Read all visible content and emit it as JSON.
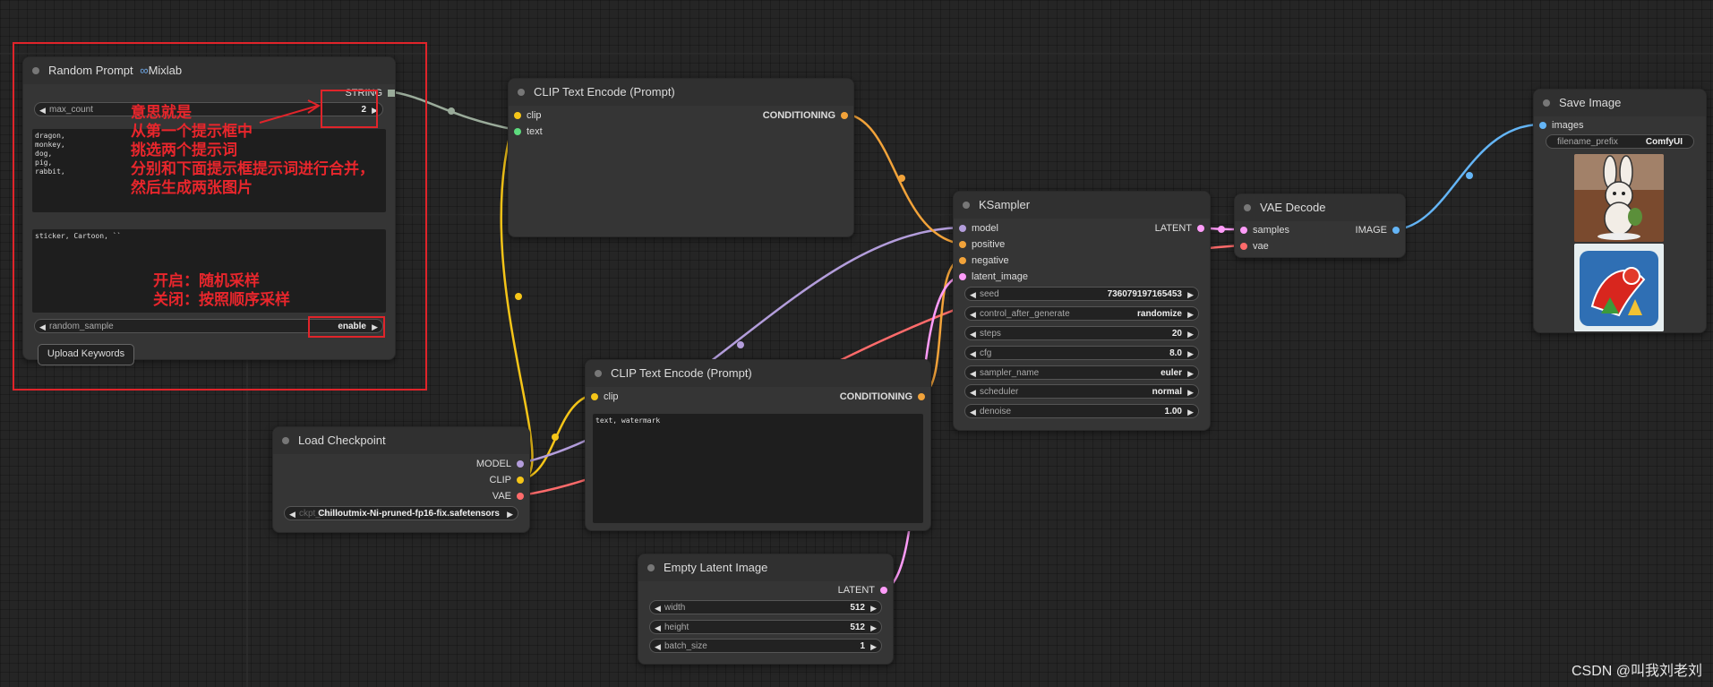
{
  "colors": {
    "annotation": "#e0242a",
    "clip_link": "#f5c518",
    "conditioning_link": "#f2a33a",
    "model_link": "#b39ddb",
    "vae_link": "#ff6b6b",
    "latent_link": "#ff9cf9",
    "image_link": "#64b5f6",
    "string_link": "#9aab9a"
  },
  "random_prompt": {
    "title": "Random Prompt",
    "title_suffix": "Mixlab",
    "title_icon": "infinity-icon",
    "output_string": "STRING",
    "max_count_label": "max_count",
    "max_count_value": "2",
    "keywords_text": "dragon,\nmonkey,\ndog,\npig,\nrabbit,",
    "prompt_text": "sticker, Cartoon, ``",
    "random_sample_label": "random_sample",
    "random_sample_value": "enable",
    "upload_button": "Upload Keywords"
  },
  "annotations": {
    "main": "意思就是\n从第一个提示框中\n挑选两个提示词\n分别和下面提示框提示词进行合并，\n然后生成两张图片",
    "toggle": "开启：随机采样\n关闭：按照顺序采样"
  },
  "clip_top": {
    "title": "CLIP Text Encode (Prompt)",
    "in_clip": "clip",
    "in_text": "text",
    "out": "CONDITIONING"
  },
  "clip_bottom": {
    "title": "CLIP Text Encode (Prompt)",
    "in_clip": "clip",
    "out": "CONDITIONING",
    "text": "text, watermark"
  },
  "load_checkpoint": {
    "title": "Load Checkpoint",
    "out_model": "MODEL",
    "out_clip": "CLIP",
    "out_vae": "VAE",
    "ckpt_label": "ckpt_name",
    "ckpt_value": "Chilloutmix-Ni-pruned-fp16-fix.safetensors"
  },
  "ksampler": {
    "title": "KSampler",
    "inputs": [
      "model",
      "positive",
      "negative",
      "latent_image"
    ],
    "output": "LATENT",
    "widgets": [
      {
        "label": "seed",
        "value": "736079197165453"
      },
      {
        "label": "control_after_generate",
        "value": "randomize"
      },
      {
        "label": "steps",
        "value": "20"
      },
      {
        "label": "cfg",
        "value": "8.0"
      },
      {
        "label": "sampler_name",
        "value": "euler"
      },
      {
        "label": "scheduler",
        "value": "normal"
      },
      {
        "label": "denoise",
        "value": "1.00"
      }
    ]
  },
  "vae_decode": {
    "title": "VAE Decode",
    "in_samples": "samples",
    "in_vae": "vae",
    "out": "IMAGE"
  },
  "save_image": {
    "title": "Save Image",
    "in_images": "images",
    "prefix_label": "filename_prefix",
    "prefix_value": "ComfyUI"
  },
  "empty_latent": {
    "title": "Empty Latent Image",
    "out": "LATENT",
    "widgets": [
      {
        "label": "width",
        "value": "512"
      },
      {
        "label": "height",
        "value": "512"
      },
      {
        "label": "batch_size",
        "value": "1"
      }
    ]
  },
  "watermark": "CSDN @叫我刘老刘"
}
